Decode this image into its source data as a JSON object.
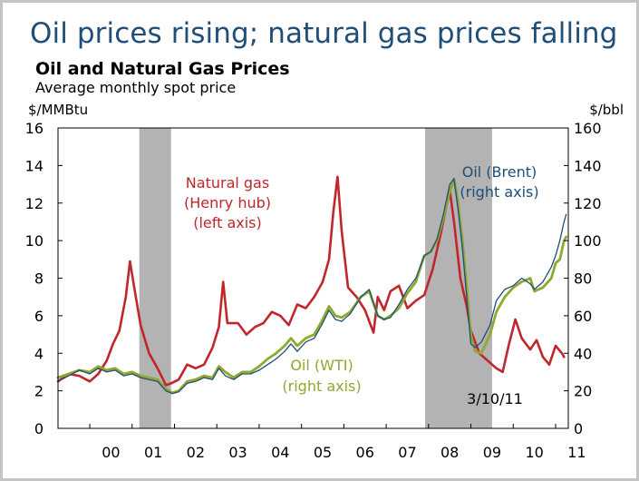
{
  "headline": "Oil prices rising; natural gas prices falling",
  "chart_data": {
    "type": "line",
    "title": "Oil and Natural Gas Prices",
    "subtitle": "Average monthly spot price",
    "left_axis": {
      "label": "$/MMBtu",
      "range": [
        0,
        16
      ],
      "ticks": [
        0,
        2,
        4,
        6,
        8,
        10,
        12,
        14,
        16
      ]
    },
    "right_axis": {
      "label": "$/bbl",
      "range": [
        0,
        160
      ],
      "ticks": [
        0,
        20,
        40,
        60,
        80,
        100,
        120,
        140,
        160
      ]
    },
    "x_axis": {
      "range": [
        1999.25,
        2011.3
      ],
      "tick_labels": [
        "00",
        "01",
        "02",
        "03",
        "04",
        "05",
        "06",
        "07",
        "08",
        "09",
        "10",
        "11"
      ]
    },
    "grid": false,
    "recession_shading": [
      [
        2001.17,
        2001.92
      ],
      [
        2007.92,
        2009.5
      ]
    ],
    "date_note": "3/10/11",
    "series": [
      {
        "name": "Natural gas (Henry hub) (left axis)",
        "axis": "left",
        "color": "#c0262b",
        "points": [
          [
            1999.25,
            2.5
          ],
          [
            1999.5,
            2.9
          ],
          [
            1999.75,
            2.8
          ],
          [
            2000.0,
            2.5
          ],
          [
            2000.2,
            2.9
          ],
          [
            2000.4,
            3.6
          ],
          [
            2000.55,
            4.5
          ],
          [
            2000.7,
            5.2
          ],
          [
            2000.85,
            7.0
          ],
          [
            2000.95,
            8.9
          ],
          [
            2001.05,
            7.5
          ],
          [
            2001.2,
            5.5
          ],
          [
            2001.4,
            4.0
          ],
          [
            2001.6,
            3.2
          ],
          [
            2001.8,
            2.3
          ],
          [
            2001.92,
            2.4
          ],
          [
            2002.1,
            2.6
          ],
          [
            2002.3,
            3.4
          ],
          [
            2002.5,
            3.2
          ],
          [
            2002.7,
            3.4
          ],
          [
            2002.9,
            4.3
          ],
          [
            2003.05,
            5.4
          ],
          [
            2003.15,
            7.8
          ],
          [
            2003.25,
            5.6
          ],
          [
            2003.5,
            5.6
          ],
          [
            2003.7,
            5.0
          ],
          [
            2003.9,
            5.4
          ],
          [
            2004.1,
            5.6
          ],
          [
            2004.3,
            6.2
          ],
          [
            2004.5,
            6.0
          ],
          [
            2004.7,
            5.5
          ],
          [
            2004.9,
            6.6
          ],
          [
            2005.1,
            6.4
          ],
          [
            2005.3,
            7.0
          ],
          [
            2005.5,
            7.8
          ],
          [
            2005.65,
            9.0
          ],
          [
            2005.75,
            11.5
          ],
          [
            2005.85,
            13.4
          ],
          [
            2005.95,
            10.5
          ],
          [
            2006.1,
            7.5
          ],
          [
            2006.3,
            7.0
          ],
          [
            2006.5,
            6.3
          ],
          [
            2006.7,
            5.1
          ],
          [
            2006.8,
            7.0
          ],
          [
            2006.95,
            6.3
          ],
          [
            2007.1,
            7.3
          ],
          [
            2007.3,
            7.6
          ],
          [
            2007.5,
            6.4
          ],
          [
            2007.7,
            6.8
          ],
          [
            2007.9,
            7.1
          ],
          [
            2008.1,
            8.5
          ],
          [
            2008.3,
            10.5
          ],
          [
            2008.5,
            12.7
          ],
          [
            2008.6,
            11.0
          ],
          [
            2008.75,
            8.0
          ],
          [
            2008.9,
            6.5
          ],
          [
            2009.0,
            5.2
          ],
          [
            2009.2,
            4.0
          ],
          [
            2009.4,
            3.6
          ],
          [
            2009.6,
            3.2
          ],
          [
            2009.75,
            3.0
          ],
          [
            2009.9,
            4.5
          ],
          [
            2010.05,
            5.8
          ],
          [
            2010.2,
            4.8
          ],
          [
            2010.4,
            4.2
          ],
          [
            2010.55,
            4.7
          ],
          [
            2010.7,
            3.8
          ],
          [
            2010.85,
            3.4
          ],
          [
            2011.0,
            4.4
          ],
          [
            2011.15,
            4.0
          ],
          [
            2011.2,
            3.8
          ]
        ]
      },
      {
        "name": "Oil (WTI) (right axis)",
        "axis": "right",
        "color": "#8ea830",
        "points": [
          [
            1999.25,
            27
          ],
          [
            1999.5,
            29
          ],
          [
            1999.75,
            31
          ],
          [
            2000.0,
            30
          ],
          [
            2000.2,
            33
          ],
          [
            2000.4,
            31
          ],
          [
            2000.6,
            32
          ],
          [
            2000.8,
            29
          ],
          [
            2001.0,
            30
          ],
          [
            2001.2,
            28
          ],
          [
            2001.4,
            27
          ],
          [
            2001.6,
            26
          ],
          [
            2001.8,
            21
          ],
          [
            2001.95,
            19
          ],
          [
            2002.1,
            20
          ],
          [
            2002.3,
            25
          ],
          [
            2002.5,
            26
          ],
          [
            2002.7,
            28
          ],
          [
            2002.9,
            27
          ],
          [
            2003.05,
            33
          ],
          [
            2003.2,
            30
          ],
          [
            2003.4,
            27
          ],
          [
            2003.6,
            30
          ],
          [
            2003.8,
            30
          ],
          [
            2004.0,
            33
          ],
          [
            2004.2,
            37
          ],
          [
            2004.4,
            40
          ],
          [
            2004.6,
            44
          ],
          [
            2004.75,
            48
          ],
          [
            2004.9,
            44
          ],
          [
            2005.1,
            48
          ],
          [
            2005.3,
            50
          ],
          [
            2005.5,
            58
          ],
          [
            2005.65,
            65
          ],
          [
            2005.8,
            60
          ],
          [
            2005.95,
            59
          ],
          [
            2006.15,
            62
          ],
          [
            2006.4,
            70
          ],
          [
            2006.6,
            73
          ],
          [
            2006.8,
            60
          ],
          [
            2006.95,
            58
          ],
          [
            2007.1,
            60
          ],
          [
            2007.3,
            64
          ],
          [
            2007.5,
            72
          ],
          [
            2007.7,
            78
          ],
          [
            2007.9,
            92
          ],
          [
            2008.05,
            94
          ],
          [
            2008.2,
            100
          ],
          [
            2008.35,
            112
          ],
          [
            2008.5,
            126
          ],
          [
            2008.6,
            133
          ],
          [
            2008.7,
            120
          ],
          [
            2008.8,
            100
          ],
          [
            2008.9,
            75
          ],
          [
            2009.0,
            50
          ],
          [
            2009.1,
            41
          ],
          [
            2009.25,
            40
          ],
          [
            2009.45,
            50
          ],
          [
            2009.6,
            62
          ],
          [
            2009.8,
            70
          ],
          [
            2010.0,
            75
          ],
          [
            2010.2,
            78
          ],
          [
            2010.4,
            80
          ],
          [
            2010.5,
            73
          ],
          [
            2010.7,
            75
          ],
          [
            2010.9,
            80
          ],
          [
            2011.0,
            88
          ],
          [
            2011.1,
            90
          ],
          [
            2011.2,
            100
          ],
          [
            2011.25,
            102
          ]
        ]
      },
      {
        "name": "Oil (Brent) (right axis)",
        "axis": "right",
        "color": "#1f4e79",
        "points": [
          [
            1999.25,
            25
          ],
          [
            1999.5,
            28
          ],
          [
            1999.75,
            31
          ],
          [
            2000.0,
            29
          ],
          [
            2000.2,
            32
          ],
          [
            2000.4,
            30
          ],
          [
            2000.6,
            31
          ],
          [
            2000.8,
            28
          ],
          [
            2001.0,
            29
          ],
          [
            2001.2,
            27
          ],
          [
            2001.4,
            26
          ],
          [
            2001.6,
            25
          ],
          [
            2001.8,
            20
          ],
          [
            2001.95,
            18.5
          ],
          [
            2002.1,
            19.5
          ],
          [
            2002.3,
            24
          ],
          [
            2002.5,
            25
          ],
          [
            2002.7,
            27
          ],
          [
            2002.9,
            26
          ],
          [
            2003.05,
            32
          ],
          [
            2003.2,
            28
          ],
          [
            2003.4,
            26
          ],
          [
            2003.6,
            29
          ],
          [
            2003.8,
            29
          ],
          [
            2004.0,
            31
          ],
          [
            2004.2,
            34
          ],
          [
            2004.4,
            37
          ],
          [
            2004.6,
            41
          ],
          [
            2004.75,
            45
          ],
          [
            2004.9,
            41
          ],
          [
            2005.1,
            46
          ],
          [
            2005.3,
            48
          ],
          [
            2005.5,
            56
          ],
          [
            2005.65,
            63
          ],
          [
            2005.8,
            58
          ],
          [
            2005.95,
            57
          ],
          [
            2006.15,
            61
          ],
          [
            2006.4,
            70
          ],
          [
            2006.6,
            74
          ],
          [
            2006.8,
            60
          ],
          [
            2006.95,
            58
          ],
          [
            2007.1,
            59
          ],
          [
            2007.3,
            66
          ],
          [
            2007.5,
            74
          ],
          [
            2007.7,
            80
          ],
          [
            2007.9,
            92
          ],
          [
            2008.05,
            94
          ],
          [
            2008.2,
            101
          ],
          [
            2008.35,
            114
          ],
          [
            2008.5,
            130
          ],
          [
            2008.6,
            133
          ],
          [
            2008.7,
            116
          ],
          [
            2008.8,
            96
          ],
          [
            2008.9,
            70
          ],
          [
            2009.0,
            45
          ],
          [
            2009.1,
            43
          ],
          [
            2009.25,
            46
          ],
          [
            2009.45,
            55
          ],
          [
            2009.6,
            68
          ],
          [
            2009.8,
            74
          ],
          [
            2010.0,
            76
          ],
          [
            2010.2,
            80
          ],
          [
            2010.4,
            77
          ],
          [
            2010.5,
            74
          ],
          [
            2010.7,
            78
          ],
          [
            2010.9,
            86
          ],
          [
            2011.0,
            92
          ],
          [
            2011.1,
            100
          ],
          [
            2011.2,
            110
          ],
          [
            2011.25,
            114
          ]
        ]
      }
    ],
    "annotations": [
      {
        "lines": [
          "Natural gas",
          "(Henry hub)",
          "(left axis)"
        ],
        "color": "#c0262b"
      },
      {
        "lines": [
          "Oil (Brent)",
          "(right axis)"
        ],
        "color": "#1f4e79"
      },
      {
        "lines": [
          "Oil (WTI)",
          "(right axis)"
        ],
        "color": "#8ea830"
      }
    ]
  }
}
